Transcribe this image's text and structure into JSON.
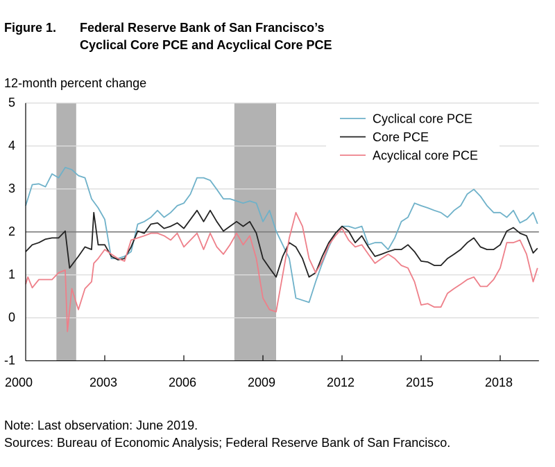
{
  "header": {
    "figure_label": "Figure 1.",
    "title_line1": "Federal Reserve Bank of San Francisco’s",
    "title_line2": "Cyclical Core PCE and Acyclical Core PCE"
  },
  "footer": {
    "note": "Note: Last observation: June 2019.",
    "sources": "Sources: Bureau of Economic Analysis; Federal Reserve Bank of San Francisco."
  },
  "chart_data": {
    "type": "line",
    "title": "Federal Reserve Bank of San Francisco’s Cyclical Core PCE and Acyclical Core PCE",
    "ylabel": "12-month percent change",
    "xlabel": "",
    "ylim": [
      -1,
      5
    ],
    "xlim": [
      "2000-01",
      "2019-06"
    ],
    "yticks": [
      "5",
      "4",
      "3",
      "2",
      "1",
      "0",
      "-1"
    ],
    "xticks": [
      "2000",
      "2003",
      "2006",
      "2009",
      "2012",
      "2015",
      "2018"
    ],
    "grid": true,
    "reference_line": 2,
    "legend_position": "top-right",
    "recessions": [
      [
        "2001-03",
        "2001-11"
      ],
      [
        "2007-12",
        "2009-06"
      ]
    ],
    "colors": {
      "cyclical": "#6eb1c9",
      "core": "#222222",
      "acyclical": "#ee7f89",
      "recession": "#b2b2b2",
      "reference": "#7a7a7a",
      "grid": "#dddddd"
    },
    "series": [
      {
        "name": "Cyclical core PCE",
        "key": "cyclical",
        "points": [
          [
            "2000-01",
            2.61
          ],
          [
            "2000-04",
            3.1
          ],
          [
            "2000-07",
            3.12
          ],
          [
            "2000-10",
            3.05
          ],
          [
            "2001-01",
            3.35
          ],
          [
            "2001-04",
            3.26
          ],
          [
            "2001-07",
            3.5
          ],
          [
            "2001-10",
            3.45
          ],
          [
            "2002-01",
            3.31
          ],
          [
            "2002-04",
            3.26
          ],
          [
            "2002-07",
            2.77
          ],
          [
            "2002-10",
            2.56
          ],
          [
            "2003-01",
            2.29
          ],
          [
            "2003-04",
            1.38
          ],
          [
            "2003-07",
            1.38
          ],
          [
            "2003-10",
            1.43
          ],
          [
            "2004-01",
            1.54
          ],
          [
            "2004-04",
            2.18
          ],
          [
            "2004-07",
            2.24
          ],
          [
            "2004-10",
            2.34
          ],
          [
            "2005-01",
            2.5
          ],
          [
            "2005-04",
            2.34
          ],
          [
            "2005-07",
            2.45
          ],
          [
            "2005-10",
            2.61
          ],
          [
            "2006-01",
            2.67
          ],
          [
            "2006-04",
            2.88
          ],
          [
            "2006-07",
            3.26
          ],
          [
            "2006-10",
            3.26
          ],
          [
            "2007-01",
            3.2
          ],
          [
            "2007-04",
            2.99
          ],
          [
            "2007-07",
            2.77
          ],
          [
            "2007-10",
            2.77
          ],
          [
            "2008-01",
            2.72
          ],
          [
            "2008-04",
            2.67
          ],
          [
            "2008-07",
            2.72
          ],
          [
            "2008-10",
            2.67
          ],
          [
            "2009-01",
            2.24
          ],
          [
            "2009-04",
            2.5
          ],
          [
            "2009-07",
            2.02
          ],
          [
            "2009-10",
            1.7
          ],
          [
            "2010-01",
            1.38
          ],
          [
            "2010-04",
            0.46
          ],
          [
            "2010-07",
            0.41
          ],
          [
            "2010-10",
            0.36
          ],
          [
            "2011-01",
            0.84
          ],
          [
            "2011-04",
            1.27
          ],
          [
            "2011-07",
            1.65
          ],
          [
            "2011-10",
            1.97
          ],
          [
            "2012-01",
            2.13
          ],
          [
            "2012-04",
            2.13
          ],
          [
            "2012-07",
            2.08
          ],
          [
            "2012-10",
            2.13
          ],
          [
            "2013-01",
            1.7
          ],
          [
            "2013-04",
            1.75
          ],
          [
            "2013-07",
            1.75
          ],
          [
            "2013-10",
            1.59
          ],
          [
            "2014-01",
            1.86
          ],
          [
            "2014-04",
            2.24
          ],
          [
            "2014-07",
            2.34
          ],
          [
            "2014-10",
            2.67
          ],
          [
            "2015-01",
            2.61
          ],
          [
            "2015-04",
            2.56
          ],
          [
            "2015-07",
            2.5
          ],
          [
            "2015-10",
            2.45
          ],
          [
            "2016-01",
            2.34
          ],
          [
            "2016-04",
            2.5
          ],
          [
            "2016-07",
            2.61
          ],
          [
            "2016-10",
            2.88
          ],
          [
            "2017-01",
            2.99
          ],
          [
            "2017-04",
            2.83
          ],
          [
            "2017-07",
            2.61
          ],
          [
            "2017-10",
            2.45
          ],
          [
            "2018-01",
            2.45
          ],
          [
            "2018-04",
            2.34
          ],
          [
            "2018-07",
            2.5
          ],
          [
            "2018-10",
            2.21
          ],
          [
            "2019-01",
            2.29
          ],
          [
            "2019-04",
            2.45
          ],
          [
            "2019-06",
            2.19
          ]
        ]
      },
      {
        "name": "Core PCE",
        "key": "core",
        "points": [
          [
            "2000-01",
            1.54
          ],
          [
            "2000-04",
            1.7
          ],
          [
            "2000-07",
            1.75
          ],
          [
            "2000-10",
            1.83
          ],
          [
            "2001-01",
            1.86
          ],
          [
            "2001-04",
            1.86
          ],
          [
            "2001-07",
            2.02
          ],
          [
            "2001-09",
            1.16
          ],
          [
            "2002-01",
            1.43
          ],
          [
            "2002-04",
            1.65
          ],
          [
            "2002-07",
            1.59
          ],
          [
            "2002-08",
            2.45
          ],
          [
            "2002-10",
            1.7
          ],
          [
            "2003-01",
            1.7
          ],
          [
            "2003-04",
            1.43
          ],
          [
            "2003-07",
            1.35
          ],
          [
            "2003-10",
            1.38
          ],
          [
            "2004-01",
            1.65
          ],
          [
            "2004-04",
            2.02
          ],
          [
            "2004-07",
            1.97
          ],
          [
            "2004-10",
            2.18
          ],
          [
            "2005-01",
            2.21
          ],
          [
            "2005-04",
            2.08
          ],
          [
            "2005-07",
            2.13
          ],
          [
            "2005-10",
            2.21
          ],
          [
            "2006-01",
            2.08
          ],
          [
            "2006-04",
            2.29
          ],
          [
            "2006-07",
            2.5
          ],
          [
            "2006-10",
            2.24
          ],
          [
            "2007-01",
            2.5
          ],
          [
            "2007-04",
            2.24
          ],
          [
            "2007-07",
            2.02
          ],
          [
            "2007-10",
            2.13
          ],
          [
            "2008-01",
            2.24
          ],
          [
            "2008-04",
            2.13
          ],
          [
            "2008-07",
            2.24
          ],
          [
            "2008-10",
            1.97
          ],
          [
            "2009-01",
            1.38
          ],
          [
            "2009-04",
            1.16
          ],
          [
            "2009-07",
            0.95
          ],
          [
            "2009-10",
            1.43
          ],
          [
            "2010-01",
            1.75
          ],
          [
            "2010-04",
            1.65
          ],
          [
            "2010-07",
            1.38
          ],
          [
            "2010-10",
            0.95
          ],
          [
            "2011-01",
            1.05
          ],
          [
            "2011-04",
            1.43
          ],
          [
            "2011-07",
            1.75
          ],
          [
            "2011-10",
            1.97
          ],
          [
            "2012-01",
            2.13
          ],
          [
            "2012-04",
            2.02
          ],
          [
            "2012-07",
            1.75
          ],
          [
            "2012-10",
            1.91
          ],
          [
            "2013-01",
            1.65
          ],
          [
            "2013-04",
            1.43
          ],
          [
            "2013-07",
            1.48
          ],
          [
            "2013-10",
            1.54
          ],
          [
            "2014-01",
            1.59
          ],
          [
            "2014-04",
            1.59
          ],
          [
            "2014-07",
            1.7
          ],
          [
            "2014-10",
            1.54
          ],
          [
            "2015-01",
            1.32
          ],
          [
            "2015-04",
            1.3
          ],
          [
            "2015-07",
            1.22
          ],
          [
            "2015-10",
            1.22
          ],
          [
            "2016-01",
            1.38
          ],
          [
            "2016-04",
            1.48
          ],
          [
            "2016-07",
            1.59
          ],
          [
            "2016-10",
            1.75
          ],
          [
            "2017-01",
            1.86
          ],
          [
            "2017-04",
            1.65
          ],
          [
            "2017-07",
            1.59
          ],
          [
            "2017-10",
            1.59
          ],
          [
            "2018-01",
            1.7
          ],
          [
            "2018-04",
            2.02
          ],
          [
            "2018-07",
            2.1
          ],
          [
            "2018-10",
            1.97
          ],
          [
            "2019-01",
            1.91
          ],
          [
            "2019-04",
            1.51
          ],
          [
            "2019-06",
            1.62
          ]
        ]
      },
      {
        "name": "Acyclical core PCE",
        "key": "acyclical",
        "points": [
          [
            "2000-01",
            0.78
          ],
          [
            "2000-02",
            0.95
          ],
          [
            "2000-04",
            0.7
          ],
          [
            "2000-07",
            0.89
          ],
          [
            "2000-10",
            0.89
          ],
          [
            "2001-01",
            0.89
          ],
          [
            "2001-04",
            1.05
          ],
          [
            "2001-07",
            1.11
          ],
          [
            "2001-08",
            -0.32
          ],
          [
            "2001-10",
            0.68
          ],
          [
            "2002-01",
            0.19
          ],
          [
            "2002-04",
            0.68
          ],
          [
            "2002-07",
            0.84
          ],
          [
            "2002-08",
            1.27
          ],
          [
            "2002-10",
            1.38
          ],
          [
            "2003-01",
            1.59
          ],
          [
            "2003-04",
            1.48
          ],
          [
            "2003-07",
            1.38
          ],
          [
            "2003-10",
            1.32
          ],
          [
            "2004-01",
            1.81
          ],
          [
            "2004-04",
            1.86
          ],
          [
            "2004-07",
            1.91
          ],
          [
            "2004-10",
            1.97
          ],
          [
            "2005-01",
            1.97
          ],
          [
            "2005-04",
            1.91
          ],
          [
            "2005-07",
            1.81
          ],
          [
            "2005-10",
            1.97
          ],
          [
            "2006-01",
            1.65
          ],
          [
            "2006-04",
            1.81
          ],
          [
            "2006-07",
            1.97
          ],
          [
            "2006-10",
            1.59
          ],
          [
            "2007-01",
            1.97
          ],
          [
            "2007-04",
            1.65
          ],
          [
            "2007-07",
            1.48
          ],
          [
            "2007-10",
            1.7
          ],
          [
            "2008-01",
            1.97
          ],
          [
            "2008-04",
            1.7
          ],
          [
            "2008-07",
            1.91
          ],
          [
            "2008-10",
            1.38
          ],
          [
            "2009-01",
            0.46
          ],
          [
            "2009-04",
            0.19
          ],
          [
            "2009-07",
            0.14
          ],
          [
            "2009-10",
            1.0
          ],
          [
            "2010-01",
            1.86
          ],
          [
            "2010-04",
            2.45
          ],
          [
            "2010-07",
            2.13
          ],
          [
            "2010-10",
            1.38
          ],
          [
            "2011-01",
            1.05
          ],
          [
            "2011-04",
            1.32
          ],
          [
            "2011-07",
            1.7
          ],
          [
            "2011-10",
            1.91
          ],
          [
            "2012-01",
            2.08
          ],
          [
            "2012-04",
            1.81
          ],
          [
            "2012-07",
            1.65
          ],
          [
            "2012-10",
            1.7
          ],
          [
            "2013-01",
            1.48
          ],
          [
            "2013-04",
            1.27
          ],
          [
            "2013-07",
            1.38
          ],
          [
            "2013-10",
            1.48
          ],
          [
            "2014-01",
            1.38
          ],
          [
            "2014-04",
            1.22
          ],
          [
            "2014-07",
            1.16
          ],
          [
            "2014-10",
            0.84
          ],
          [
            "2015-01",
            0.3
          ],
          [
            "2015-04",
            0.33
          ],
          [
            "2015-07",
            0.25
          ],
          [
            "2015-10",
            0.25
          ],
          [
            "2016-01",
            0.57
          ],
          [
            "2016-04",
            0.68
          ],
          [
            "2016-07",
            0.78
          ],
          [
            "2016-10",
            0.89
          ],
          [
            "2017-01",
            0.95
          ],
          [
            "2017-04",
            0.73
          ],
          [
            "2017-07",
            0.73
          ],
          [
            "2017-10",
            0.89
          ],
          [
            "2018-01",
            1.16
          ],
          [
            "2018-04",
            1.75
          ],
          [
            "2018-07",
            1.75
          ],
          [
            "2018-10",
            1.81
          ],
          [
            "2019-01",
            1.48
          ],
          [
            "2019-04",
            0.84
          ],
          [
            "2019-06",
            1.16
          ]
        ]
      }
    ]
  }
}
